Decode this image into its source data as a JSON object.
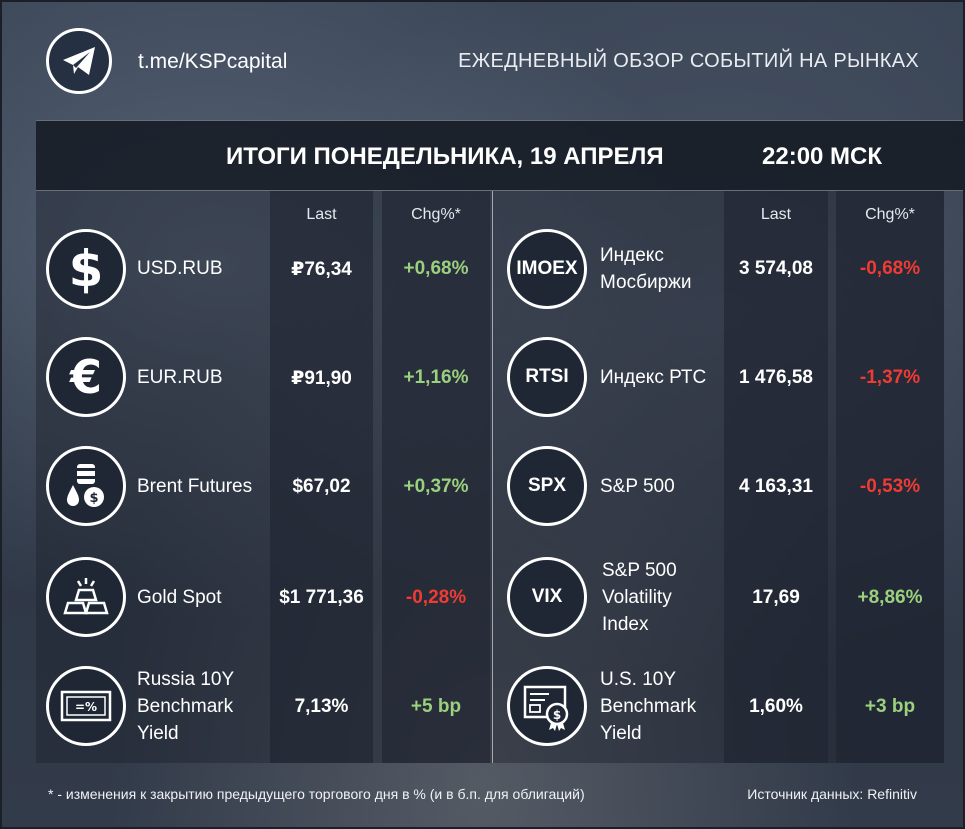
{
  "header": {
    "link": "t.me/KSPcapital",
    "tagline": "ЕЖЕДНЕВНЫЙ ОБЗОР СОБЫТИЙ НА РЫНКАХ",
    "title": "ИТОГИ ПОНЕДЕЛЬНИКА, 19 АПРЕЛЯ",
    "time": "22:00 МСК"
  },
  "columns": {
    "last": "Last",
    "chg": "Chg%*"
  },
  "left": [
    {
      "name": [
        "USD.RUB"
      ],
      "last": "₽76,34",
      "chg": "+0,68%",
      "dir": "pos",
      "icon": "dollar-icon"
    },
    {
      "name": [
        "EUR.RUB"
      ],
      "last": "₽91,90",
      "chg": "+1,16%",
      "dir": "pos",
      "icon": "euro-icon"
    },
    {
      "name": [
        "Brent Futures"
      ],
      "last": "$67,02",
      "chg": "+0,37%",
      "dir": "pos",
      "icon": "oil-barrel-icon"
    },
    {
      "name": [
        "Gold Spot"
      ],
      "last": "$1 771,36",
      "chg": "-0,28%",
      "dir": "neg",
      "icon": "gold-bars-icon"
    },
    {
      "name": [
        "Russia 10Y",
        "Benchmark",
        "Yield"
      ],
      "last": "7,13%",
      "chg": "+5 bp",
      "dir": "pos",
      "icon": "bond-certificate-icon"
    }
  ],
  "right": [
    {
      "code": "IMOEX",
      "name": [
        "Индекс",
        "Мосбиржи"
      ],
      "last": "3 574,08",
      "chg": "-0,68%",
      "dir": "neg"
    },
    {
      "code": "RTSI",
      "name": [
        "Индекс РТС"
      ],
      "last": "1 476,58",
      "chg": "-1,37%",
      "dir": "neg"
    },
    {
      "code": "SPX",
      "name": [
        "S&P 500"
      ],
      "last": "4 163,31",
      "chg": "-0,53%",
      "dir": "neg"
    },
    {
      "code": "VIX",
      "name": [
        "S&P 500",
        "Volatility",
        "Index"
      ],
      "last": "17,69",
      "chg": "+8,86%",
      "dir": "pos"
    },
    {
      "code": "",
      "name": [
        "U.S. 10Y",
        "Benchmark",
        "Yield"
      ],
      "last": "1,60%",
      "chg": "+3 bp",
      "dir": "pos",
      "icon": "us-bond-certificate-icon"
    }
  ],
  "footer": {
    "note": "* - изменения к закрытию предыдущего торгового дня в % (и в б.п. для облигаций)",
    "source": "Источник данных: Refinitiv"
  },
  "colors": {
    "positive": "#9ad07e",
    "negative": "#ef3b34"
  }
}
